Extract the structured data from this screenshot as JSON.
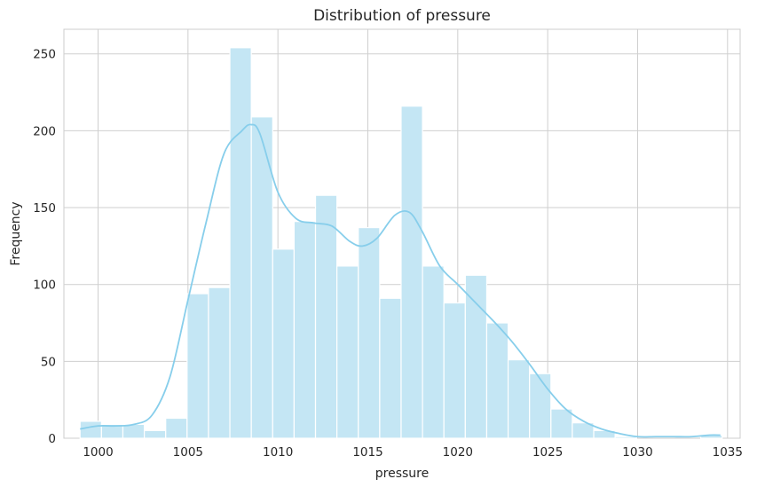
{
  "chart_data": {
    "type": "bar",
    "subtype": "histogram with kde",
    "title": "Distribution of pressure",
    "xlabel": "pressure",
    "ylabel": "Frequency",
    "xlim": [
      998.1,
      1035.7
    ],
    "ylim": [
      0,
      266
    ],
    "xticks": [
      1000,
      1005,
      1010,
      1015,
      1020,
      1025,
      1030,
      1035
    ],
    "yticks": [
      0,
      50,
      100,
      150,
      200,
      250
    ],
    "grid": true,
    "bin_width": 1.19,
    "bin_start": 999.0,
    "bars": [
      {
        "start": 999.0,
        "value": 11
      },
      {
        "start": 1000.19,
        "value": 9
      },
      {
        "start": 1001.38,
        "value": 9
      },
      {
        "start": 1002.57,
        "value": 5
      },
      {
        "start": 1003.76,
        "value": 13
      },
      {
        "start": 1004.95,
        "value": 94
      },
      {
        "start": 1006.14,
        "value": 98
      },
      {
        "start": 1007.33,
        "value": 254
      },
      {
        "start": 1008.52,
        "value": 209
      },
      {
        "start": 1009.71,
        "value": 123
      },
      {
        "start": 1010.9,
        "value": 141
      },
      {
        "start": 1012.09,
        "value": 158
      },
      {
        "start": 1013.28,
        "value": 112
      },
      {
        "start": 1014.47,
        "value": 137
      },
      {
        "start": 1015.66,
        "value": 91
      },
      {
        "start": 1016.85,
        "value": 216
      },
      {
        "start": 1018.04,
        "value": 112
      },
      {
        "start": 1019.23,
        "value": 88
      },
      {
        "start": 1020.42,
        "value": 106
      },
      {
        "start": 1021.61,
        "value": 75
      },
      {
        "start": 1022.8,
        "value": 51
      },
      {
        "start": 1023.99,
        "value": 42
      },
      {
        "start": 1025.18,
        "value": 19
      },
      {
        "start": 1026.37,
        "value": 10
      },
      {
        "start": 1027.56,
        "value": 5
      },
      {
        "start": 1028.75,
        "value": 1
      },
      {
        "start": 1029.94,
        "value": 0
      },
      {
        "start": 1031.13,
        "value": 0
      },
      {
        "start": 1032.32,
        "value": 0
      },
      {
        "start": 1033.51,
        "value": 2
      }
    ],
    "kde": {
      "x": [
        999.0,
        1000.0,
        1001.0,
        1002.0,
        1003.0,
        1004.0,
        1005.0,
        1006.0,
        1007.0,
        1008.0,
        1008.5,
        1009.0,
        1010.0,
        1011.0,
        1012.0,
        1013.0,
        1014.0,
        1014.7,
        1015.5,
        1016.5,
        1017.3,
        1018.0,
        1019.0,
        1020.0,
        1021.0,
        1022.0,
        1023.0,
        1024.0,
        1025.0,
        1026.0,
        1027.0,
        1028.0,
        1029.0,
        1030.0,
        1031.0,
        1032.0,
        1033.0,
        1034.0,
        1034.6
      ],
      "y": [
        6,
        8,
        8,
        9,
        15,
        40,
        90,
        140,
        185,
        200,
        204,
        198,
        160,
        143,
        140,
        138,
        128,
        125,
        130,
        145,
        147,
        135,
        112,
        100,
        88,
        76,
        63,
        48,
        32,
        19,
        11,
        6,
        3,
        1,
        1,
        1,
        1,
        2,
        2
      ]
    },
    "colors": {
      "bar": "#c4e6f4",
      "line": "#87ceeb",
      "grid": "#cfcfcf"
    }
  }
}
